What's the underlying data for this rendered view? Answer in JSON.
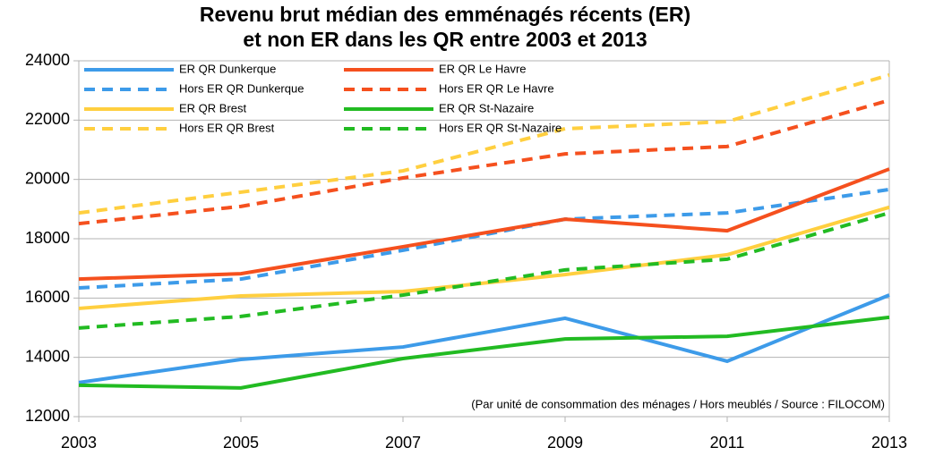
{
  "chart_data": {
    "type": "line",
    "title": [
      "Revenu brut médian des emménagés récents (ER)",
      "et non ER dans les QR entre 2003 et 2013"
    ],
    "annotation": "(Par unité de consommation des ménages / Hors meublés / Source : FILOCOM)",
    "x": [
      2003,
      2005,
      2007,
      2009,
      2011,
      2013
    ],
    "xlim": [
      2003,
      2013
    ],
    "xticks": [
      2003,
      2005,
      2007,
      2009,
      2011,
      2013
    ],
    "ylim": [
      12000,
      24000
    ],
    "yticks": [
      12000,
      14000,
      16000,
      18000,
      20000,
      22000,
      24000
    ],
    "grid": true,
    "legend": "top-left",
    "series": [
      {
        "name": "ER QR Dunkerque",
        "color": "#3d9be9",
        "dashed": false,
        "values": [
          13150,
          13930,
          14350,
          15320,
          13870,
          16100
        ]
      },
      {
        "name": "Hors ER QR Dunkerque",
        "color": "#3d9be9",
        "dashed": true,
        "values": [
          16340,
          16640,
          17610,
          18660,
          18870,
          19660
        ]
      },
      {
        "name": "ER QR Brest",
        "color": "#ffcf3f",
        "dashed": false,
        "values": [
          15650,
          16070,
          16220,
          16790,
          17460,
          19060
        ]
      },
      {
        "name": "Hors ER QR Brest",
        "color": "#ffcf3f",
        "dashed": true,
        "values": [
          18870,
          19570,
          20290,
          21710,
          21950,
          23520
        ]
      },
      {
        "name": "ER QR Le Havre",
        "color": "#f5501e",
        "dashed": false,
        "values": [
          16640,
          16820,
          17730,
          18660,
          18270,
          20350
        ]
      },
      {
        "name": "Hors ER QR Le Havre",
        "color": "#f5501e",
        "dashed": true,
        "values": [
          18510,
          19090,
          20050,
          20860,
          21110,
          22670
        ]
      },
      {
        "name": "ER QR St-Nazaire",
        "color": "#22bb22",
        "dashed": false,
        "values": [
          13060,
          12970,
          13960,
          14620,
          14710,
          15350
        ]
      },
      {
        "name": "Hors ER QR St-Nazaire",
        "color": "#22bb22",
        "dashed": true,
        "values": [
          14990,
          15380,
          16100,
          16950,
          17310,
          18870
        ]
      }
    ]
  }
}
